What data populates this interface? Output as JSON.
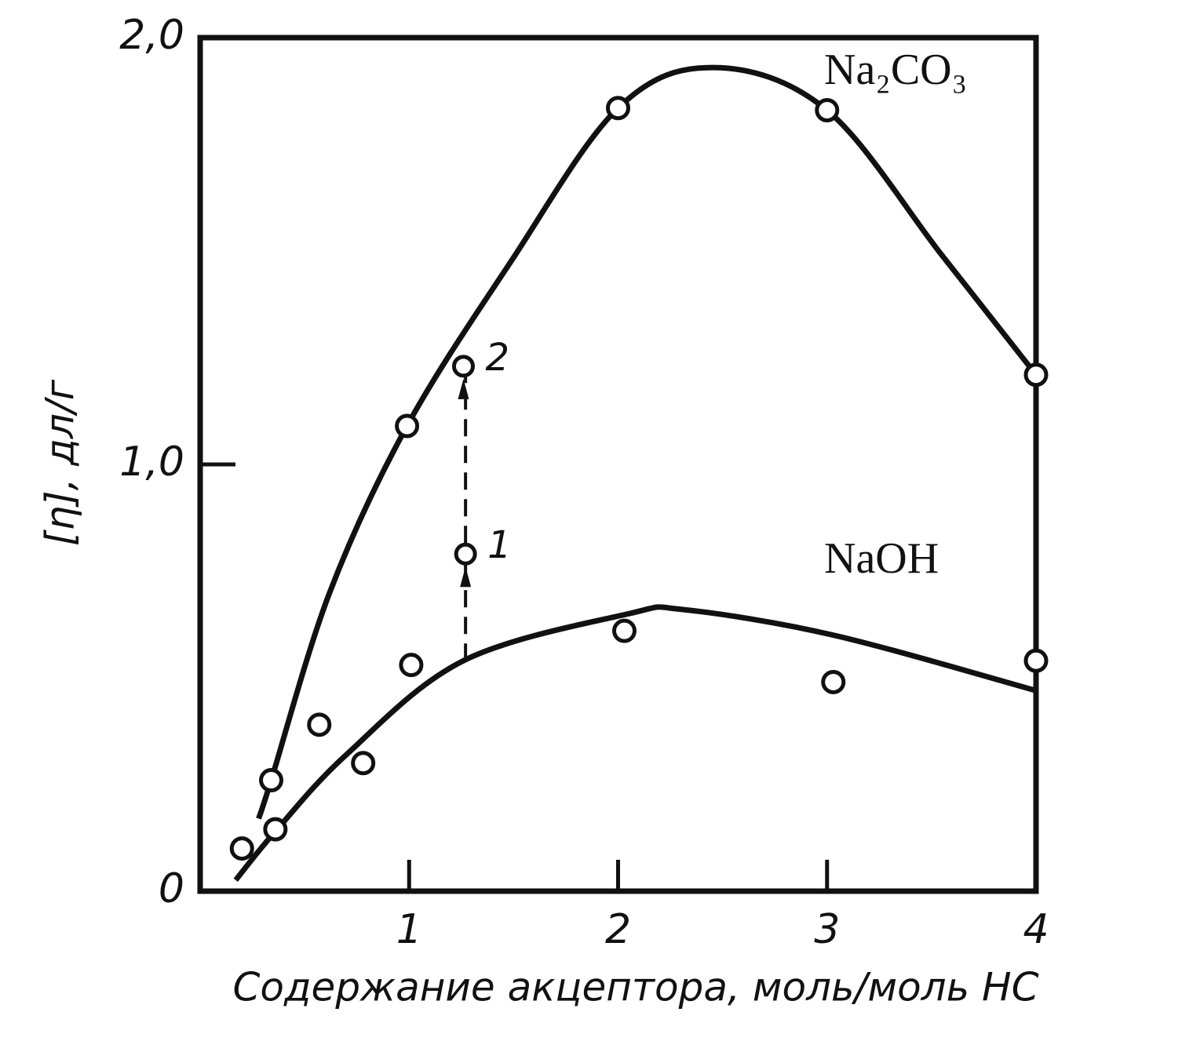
{
  "chart_data": {
    "type": "line",
    "xlabel": "Содержание акцептора, моль/моль НС",
    "ylabel": "[η], дл/г",
    "xlim": [
      0,
      4
    ],
    "ylim": [
      0,
      2
    ],
    "xticks": [
      1,
      2,
      3,
      4
    ],
    "yticks": [
      0,
      {
        "value": 1,
        "label": "1,0"
      },
      {
        "value": 2,
        "label": "2,0"
      }
    ],
    "series": [
      {
        "name": "Na₂CO₃",
        "color": "#111111",
        "x": [
          0.34,
          0.99,
          2.0,
          3.0,
          4.0
        ],
        "values": [
          0.26,
          1.09,
          1.835,
          1.83,
          1.21
        ],
        "curve_x": [
          0.28,
          0.34,
          0.62,
          0.99,
          1.48,
          2.0,
          2.46,
          3.0,
          3.55,
          4.0
        ],
        "curve_values": [
          0.17,
          0.26,
          0.7,
          1.09,
          1.47,
          1.835,
          1.93,
          1.83,
          1.49,
          1.21
        ]
      },
      {
        "name": "NaOH",
        "color": "#111111",
        "x": [
          0.2,
          0.36,
          0.57,
          0.78,
          1.01,
          2.03,
          3.03,
          4.0
        ],
        "values": [
          0.1,
          0.145,
          0.39,
          0.3,
          0.53,
          0.61,
          0.49,
          0.54
        ],
        "curve_x": [
          0.17,
          0.36,
          0.7,
          1.26,
          2.05,
          2.31,
          3.03,
          4.0
        ],
        "curve_values": [
          0.026,
          0.14,
          0.32,
          0.54,
          0.65,
          0.66,
          0.6,
          0.47
        ]
      }
    ],
    "annotations": [
      {
        "text": "1",
        "x": 1.27,
        "y": 0.79
      },
      {
        "text": "2",
        "x": 1.26,
        "y": 1.23
      }
    ],
    "arrow_from": 0.54
  }
}
